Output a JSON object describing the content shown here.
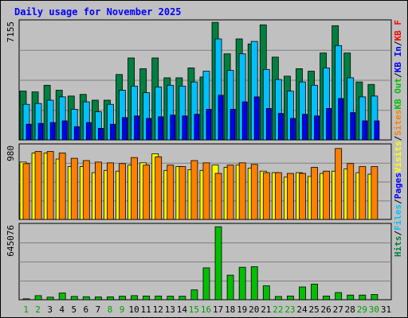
{
  "chart_data": {
    "type": "bar",
    "title": "Daily usage for November 2025",
    "categories": [
      "1",
      "2",
      "3",
      "4",
      "5",
      "6",
      "7",
      "8",
      "9",
      "10",
      "11",
      "12",
      "13",
      "14",
      "15",
      "16",
      "17",
      "18",
      "19",
      "20",
      "21",
      "22",
      "23",
      "24",
      "25",
      "26",
      "27",
      "28",
      "29",
      "30",
      "31"
    ],
    "weekend_days": [
      "1",
      "2",
      "8",
      "9",
      "15",
      "16",
      "22",
      "23",
      "29",
      "30"
    ],
    "panels": [
      {
        "id": "hits",
        "ymax_label": "7155",
        "ymax": 7155,
        "series": [
          {
            "name": "Hits",
            "color": "#008040",
            "values": [
              2950,
              2900,
              3300,
              3000,
              2650,
              2750,
              2400,
              2400,
              3950,
              4950,
              4300,
              4950,
              3750,
              3750,
              4350,
              3800,
              7100,
              5200,
              6100,
              5800,
              6950,
              5000,
              3850,
              4300,
              4150,
              5250,
              6900,
              5250,
              3500,
              3350,
              0
            ]
          },
          {
            "name": "Files",
            "color": "#00c0ff",
            "values": [
              2150,
              2200,
              2400,
              2600,
              1850,
              2300,
              1700,
              2150,
              3000,
              3250,
              2850,
              3200,
              3300,
              3250,
              3500,
              4150,
              6100,
              4200,
              5200,
              5950,
              4250,
              3650,
              2950,
              3500,
              3300,
              4350,
              5700,
              3750,
              2600,
              2650,
              0
            ]
          },
          {
            "name": "Pages",
            "color": "#0000ff",
            "values": [
              950,
              1000,
              1050,
              1150,
              800,
              1050,
              700,
              950,
              1350,
              1450,
              1300,
              1400,
              1500,
              1450,
              1550,
              1850,
              2700,
              1850,
              2300,
              2600,
              1900,
              1600,
              1300,
              1550,
              1450,
              1900,
              2500,
              1650,
              1150,
              1150,
              0
            ]
          }
        ]
      },
      {
        "id": "visits",
        "ymax_label": "980",
        "ymax": 980,
        "series": [
          {
            "name": "Visits",
            "color": "#ffff00",
            "values": [
              760,
              880,
              880,
              800,
              700,
              700,
              620,
              650,
              640,
              720,
              750,
              870,
              650,
              700,
              660,
              650,
              720,
              690,
              720,
              680,
              640,
              620,
              560,
              620,
              570,
              610,
              640,
              670,
              620,
              600,
              0
            ]
          },
          {
            "name": "Sites",
            "color": "#ff8000",
            "values": [
              740,
              900,
              900,
              880,
              810,
              780,
              760,
              750,
              740,
              820,
              720,
              830,
              720,
              700,
              780,
              750,
              610,
              720,
              750,
              730,
              620,
              620,
              610,
              610,
              690,
              640,
              940,
              740,
              700,
              700,
              0
            ]
          }
        ]
      },
      {
        "id": "kbytes",
        "ymax_label": "645076",
        "ymax": 645076,
        "series": [
          {
            "name": "KB F",
            "color": "#ff0000",
            "values": [
              0,
              0,
              0,
              0,
              0,
              0,
              0,
              0,
              0,
              0,
              0,
              0,
              0,
              0,
              0,
              0,
              0,
              0,
              0,
              0,
              0,
              0,
              0,
              0,
              0,
              0,
              0,
              0,
              0,
              0,
              0
            ]
          },
          {
            "name": "KB In",
            "color": "#0000ff",
            "values": [
              0,
              0,
              0,
              0,
              0,
              0,
              0,
              0,
              0,
              0,
              0,
              0,
              0,
              0,
              0,
              0,
              0,
              0,
              0,
              0,
              0,
              0,
              0,
              0,
              0,
              0,
              0,
              0,
              0,
              0,
              0
            ]
          },
          {
            "name": "KB Out",
            "color": "#00c000",
            "values": [
              8000,
              35000,
              22000,
              58000,
              28000,
              26000,
              24000,
              25000,
              30000,
              35000,
              32000,
              32000,
              30000,
              30000,
              85000,
              275000,
              630000,
              212000,
              280000,
              285000,
              120000,
              28000,
              32000,
              110000,
              135000,
              32000,
              62000,
              40000,
              40000,
              45000,
              0
            ]
          }
        ]
      }
    ],
    "legend": [
      {
        "label": "Hits",
        "color": "#008040"
      },
      {
        "label": "Files",
        "color": "#00c0ff"
      },
      {
        "label": "Pages",
        "color": "#0000ff"
      },
      {
        "label": "Visits",
        "color": "#ffff00"
      },
      {
        "label": "Sites",
        "color": "#ff8000"
      },
      {
        "label": "KB Out",
        "color": "#00c000"
      },
      {
        "label": "KB In",
        "color": "#0000ff"
      },
      {
        "label": "KB F",
        "color": "#ff0000"
      }
    ],
    "legend_separator": "/",
    "colors": {
      "background": "#c0c0c0",
      "border": "#000000",
      "title": "#0000ff",
      "weekday_label": "#000000",
      "weekend_label": "#00a000",
      "grid": "#808080"
    }
  }
}
